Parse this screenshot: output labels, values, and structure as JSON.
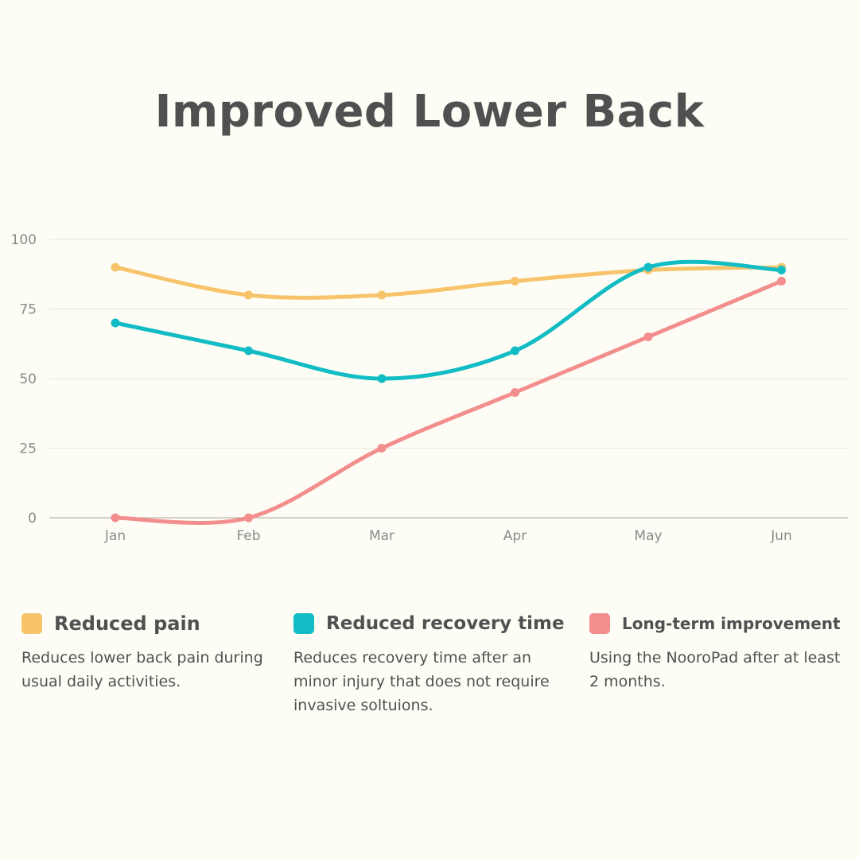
{
  "page": {
    "title": "Improved Lower Back"
  },
  "chart_data": {
    "type": "line",
    "title": "Improved Lower Back",
    "categories": [
      "Jan",
      "Feb",
      "Mar",
      "Apr",
      "May",
      "Jun"
    ],
    "y_ticks": [
      0,
      25,
      50,
      75,
      100
    ],
    "ylim": [
      0,
      100
    ],
    "xlabel": "",
    "ylabel": "",
    "grid": true,
    "series": [
      {
        "name": "Reduced pain",
        "color": "#f7c46c",
        "values": [
          90,
          80,
          80,
          85,
          89,
          90
        ]
      },
      {
        "name": "Reduced recovery time",
        "color": "#12bcc4",
        "values": [
          70,
          60,
          50,
          60,
          90,
          89
        ]
      },
      {
        "name": "Long-term improvement",
        "color": "#f38e8e",
        "values": [
          0,
          0,
          25,
          45,
          65,
          85
        ]
      }
    ]
  },
  "legend": [
    {
      "title": "Reduced pain",
      "description": "Reduces lower back pain during usual daily activities.",
      "color": "#f7c46c"
    },
    {
      "title": "Reduced recovery time",
      "description": "Reduces recovery time after an minor injury that does not require invasive soltuions.",
      "color": "#12bcc4"
    },
    {
      "title": "Long-term improvement",
      "description": "Using the NooroPad after at least 2 months.",
      "color": "#f38e8e"
    }
  ]
}
